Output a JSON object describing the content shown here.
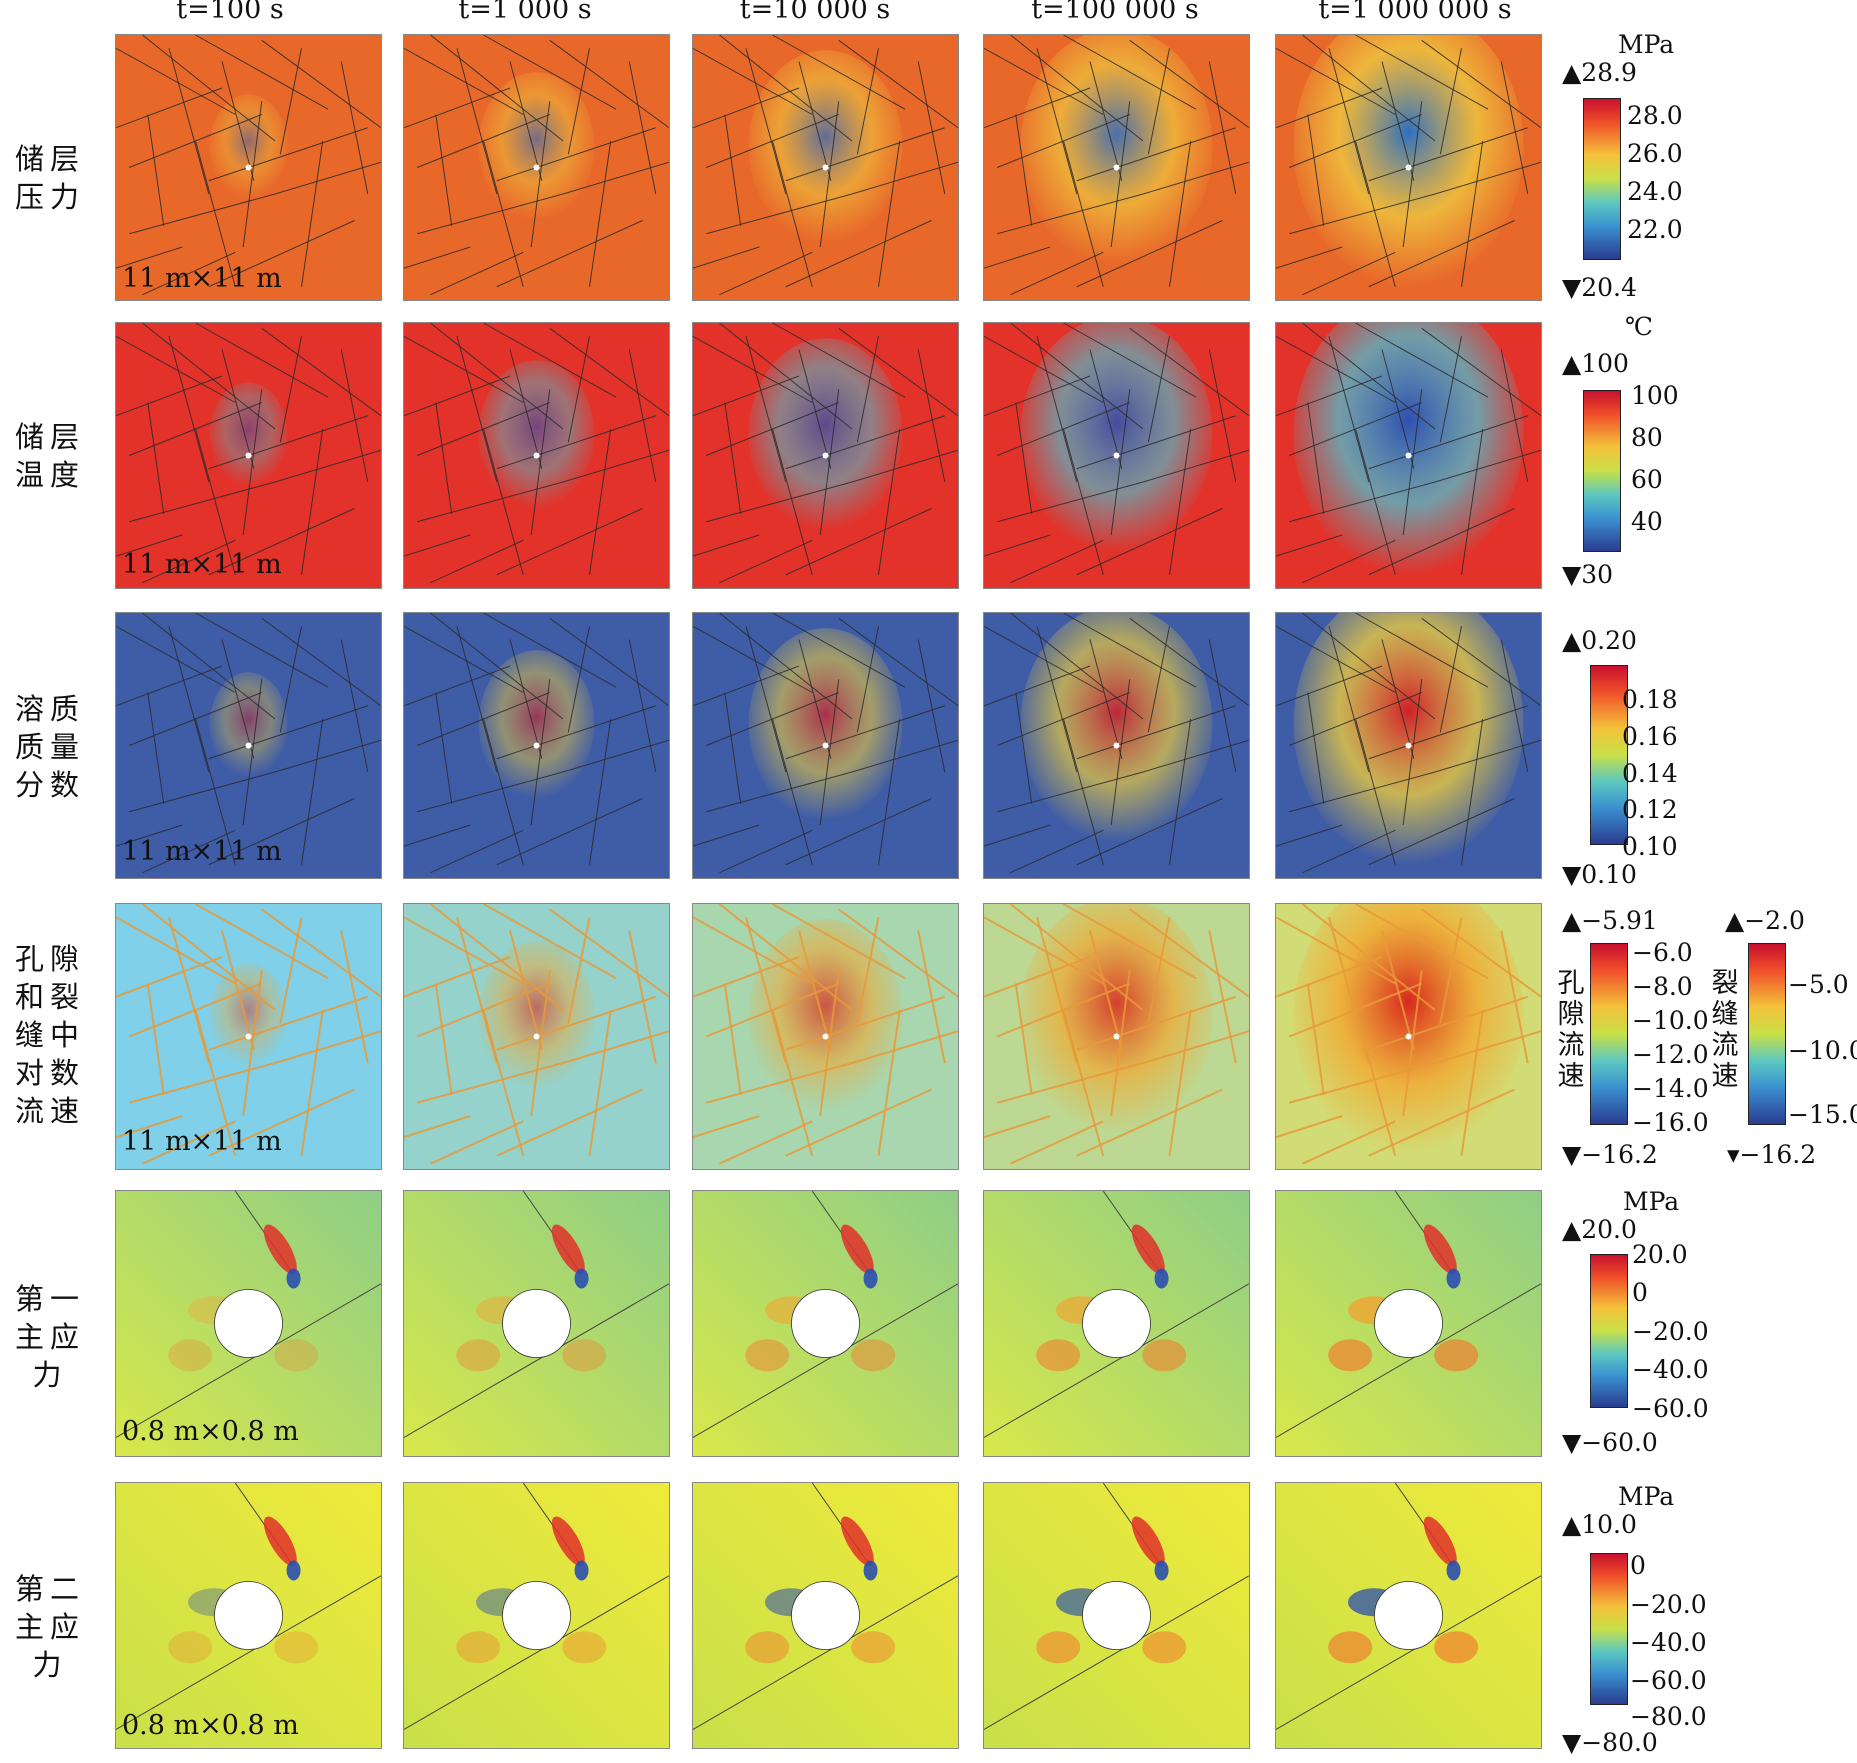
{
  "time_headers": [
    "t=100 s",
    "t=1 000 s",
    "t=10 000 s",
    "t=100 000 s",
    "t=1 000 000 s"
  ],
  "rows": [
    {
      "id": "reservoir-pressure",
      "label": "储层\n压力",
      "scale": "11 m×11 m",
      "colorbar": {
        "unit": "MPa",
        "max": "▲28.9",
        "min": "▼20.4",
        "ticks": [
          "28.0",
          "26.0",
          "24.0",
          "22.0"
        ]
      }
    },
    {
      "id": "reservoir-temperature",
      "label": "储层\n温度",
      "scale": "11 m×11 m",
      "colorbar": {
        "unit": "℃",
        "max": "▲100",
        "min": "▼30",
        "ticks": [
          "100",
          "80",
          "60",
          "40"
        ]
      }
    },
    {
      "id": "solute-mass-fraction",
      "label": "溶质\n质量\n分数",
      "scale": "11 m×11 m",
      "colorbar": {
        "unit": "",
        "max": "▲0.20",
        "min": "▼0.10",
        "ticks": [
          "0.18",
          "0.16",
          "0.14",
          "0.12",
          "0.10"
        ]
      }
    },
    {
      "id": "log-flow-velocity",
      "label": "孔隙\n和裂\n缝中\n对数\n流速",
      "scale": "11 m×11 m",
      "colorbar": {
        "unit": "",
        "max": "▲−5.91",
        "min": "▼−16.2",
        "ticks": [
          "−6.0",
          "−8.0",
          "−10.0",
          "−12.0",
          "−14.0",
          "−16.0"
        ],
        "side_label": "孔\n隙\n流\n速"
      },
      "colorbar2": {
        "max": "▲−2.0",
        "min": "▾−16.2",
        "ticks": [
          "−5.0",
          "−10.0",
          "−15.0"
        ],
        "side_label": "裂\n缝\n流\n速"
      }
    },
    {
      "id": "first-principal-stress",
      "label": "第一\n主应力",
      "scale": "0.8 m×0.8 m",
      "colorbar": {
        "unit": "MPa",
        "max": "▲20.0",
        "min": "▼−60.0",
        "ticks": [
          "20.0",
          "0",
          "−20.0",
          "−40.0",
          "−60.0"
        ]
      }
    },
    {
      "id": "second-principal-stress",
      "label": "第二\n主应力",
      "scale": "0.8 m×0.8 m",
      "colorbar": {
        "unit": "MPa",
        "max": "▲10.0",
        "min": "▼−80.0",
        "ticks": [
          "0",
          "−20.0",
          "−40.0",
          "−60.0",
          "−80.0"
        ]
      }
    }
  ],
  "colors": {
    "pressure_bg": "#e8682a",
    "temperature_bg": "#e2322a",
    "solute_bg": "#3f5ca6",
    "velocity_bg": "#7fd0e8",
    "stress1_bg": "#9fd07a",
    "stress2_bg": "#e8e23a",
    "jet_top": "#c8102e",
    "jet_bottom": "#2a3c8f"
  }
}
